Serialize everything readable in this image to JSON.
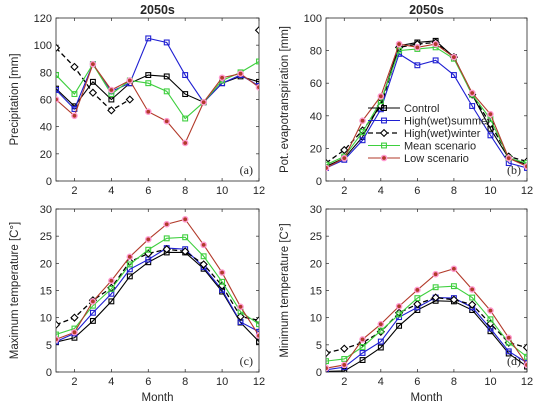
{
  "chart_data": [
    {
      "type": "line",
      "title": "2050s",
      "panel_label": "(a)",
      "xlabel": "",
      "ylabel": "Precipitation [mm]",
      "xlim": [
        1,
        12
      ],
      "ylim": [
        0,
        120
      ],
      "xticks": [
        2,
        4,
        6,
        8,
        10,
        12
      ],
      "yticks": [
        0,
        20,
        40,
        60,
        80,
        100,
        120
      ],
      "x": [
        1,
        2,
        3,
        4,
        5,
        6,
        7,
        8,
        9,
        10,
        11,
        12
      ],
      "series": [
        {
          "name": "Control",
          "color": "#000000",
          "dashed": false,
          "marker": "square",
          "values": [
            68,
            55,
            73,
            60,
            72,
            78,
            77,
            64,
            58,
            72,
            77,
            73
          ]
        },
        {
          "name": "High(wet)summer",
          "color": "#1f1fd2",
          "dashed": false,
          "marker": "square",
          "values": [
            67,
            53,
            86,
            66,
            72,
            105,
            102,
            78,
            58,
            72,
            78,
            70
          ]
        },
        {
          "name": "High(wet)winter",
          "color": "#000000",
          "dashed": true,
          "marker": "diamond",
          "values": [
            98,
            84,
            65,
            52,
            60,
            null,
            null,
            null,
            null,
            null,
            null,
            111
          ]
        },
        {
          "name": "Mean scenario",
          "color": "#3ecf3e",
          "dashed": false,
          "marker": "square",
          "values": [
            78,
            64,
            86,
            64,
            74,
            72,
            66,
            46,
            58,
            74,
            80,
            88
          ]
        },
        {
          "name": "Low scenario",
          "color": "#b23a2a",
          "dashed": false,
          "marker": "circle",
          "values": [
            60,
            48,
            86,
            67,
            74,
            51,
            44,
            28,
            58,
            76,
            79,
            69
          ]
        }
      ]
    },
    {
      "type": "line",
      "title": "2050s",
      "panel_label": "(b)",
      "xlabel": "",
      "ylabel": "Pot. evapotranspiration [mm]",
      "xlim": [
        1,
        12
      ],
      "ylim": [
        0,
        100
      ],
      "xticks": [
        2,
        4,
        6,
        8,
        10,
        12
      ],
      "yticks": [
        0,
        20,
        40,
        60,
        80,
        100
      ],
      "x": [
        1,
        2,
        3,
        4,
        5,
        6,
        7,
        8,
        9,
        10,
        11,
        12
      ],
      "legend": {
        "position": "center-right"
      },
      "series": [
        {
          "name": "Control",
          "color": "#000000",
          "dashed": false,
          "marker": "square",
          "values": [
            9,
            14,
            27,
            48,
            83,
            85,
            86,
            76,
            53,
            32,
            14,
            10
          ]
        },
        {
          "name": "High(wet)summer",
          "color": "#1f1fd2",
          "dashed": false,
          "marker": "square",
          "values": [
            8,
            13,
            25,
            44,
            78,
            71,
            74,
            65,
            46,
            28,
            11,
            8
          ]
        },
        {
          "name": "High(wet)winter",
          "color": "#000000",
          "dashed": true,
          "marker": "diamond",
          "values": [
            11,
            19,
            31,
            46,
            82,
            84,
            85,
            76,
            53,
            35,
            15,
            12
          ]
        },
        {
          "name": "Mean scenario",
          "color": "#3ecf3e",
          "dashed": false,
          "marker": "square",
          "values": [
            10,
            15,
            30,
            49,
            80,
            81,
            82,
            75,
            53,
            38,
            14,
            11
          ]
        },
        {
          "name": "Low scenario",
          "color": "#b23a2a",
          "dashed": false,
          "marker": "circle",
          "values": [
            8,
            14,
            37,
            52,
            84,
            82,
            84,
            76,
            54,
            41,
            14,
            9
          ]
        }
      ]
    },
    {
      "type": "line",
      "title": "",
      "panel_label": "(c)",
      "xlabel": "Month",
      "ylabel": "Maximum temperature [C°]",
      "xlim": [
        1,
        12
      ],
      "ylim": [
        0,
        30
      ],
      "xticks": [
        2,
        4,
        6,
        8,
        10,
        12
      ],
      "yticks": [
        0,
        5,
        10,
        15,
        20,
        25,
        30
      ],
      "x": [
        1,
        2,
        3,
        4,
        5,
        6,
        7,
        8,
        9,
        10,
        11,
        12
      ],
      "series": [
        {
          "name": "Control",
          "color": "#000000",
          "dashed": false,
          "marker": "square",
          "values": [
            5.5,
            6.3,
            9.4,
            13.0,
            17.6,
            20.2,
            22.0,
            22.0,
            19.0,
            14.8,
            9.1,
            5.6
          ]
        },
        {
          "name": "High(wet)summer",
          "color": "#1f1fd2",
          "dashed": false,
          "marker": "square",
          "values": [
            5.6,
            7.1,
            10.9,
            14.4,
            18.9,
            20.7,
            22.8,
            22.6,
            19.3,
            15.1,
            9.2,
            7.4
          ]
        },
        {
          "name": "High(wet)winter",
          "color": "#000000",
          "dashed": true,
          "marker": "diamond",
          "values": [
            8.7,
            10.0,
            13.2,
            15.5,
            20.3,
            21.8,
            22.6,
            22.2,
            19.8,
            15.9,
            10.2,
            9.5
          ]
        },
        {
          "name": "Mean scenario",
          "color": "#3ecf3e",
          "dashed": false,
          "marker": "square",
          "values": [
            6.9,
            8.0,
            12.2,
            15.3,
            19.8,
            22.5,
            24.6,
            24.8,
            21.3,
            16.6,
            11.1,
            8.8
          ]
        },
        {
          "name": "Low scenario",
          "color": "#b23a2a",
          "dashed": false,
          "marker": "circle",
          "values": [
            6.0,
            7.3,
            13.0,
            16.8,
            21.2,
            24.4,
            27.2,
            28.1,
            23.4,
            18.3,
            12.0,
            6.7
          ]
        }
      ]
    },
    {
      "type": "line",
      "title": "",
      "panel_label": "(d)",
      "xlabel": "Month",
      "ylabel": "Minimum temperature [C°]",
      "xlim": [
        1,
        12
      ],
      "ylim": [
        0,
        30
      ],
      "xticks": [
        2,
        4,
        6,
        8,
        10,
        12
      ],
      "yticks": [
        0,
        5,
        10,
        15,
        20,
        25,
        30
      ],
      "x": [
        1,
        2,
        3,
        4,
        5,
        6,
        7,
        8,
        9,
        10,
        11,
        12
      ],
      "series": [
        {
          "name": "Control",
          "color": "#000000",
          "dashed": false,
          "marker": "square",
          "values": [
            0.1,
            0.2,
            2.2,
            4.5,
            8.5,
            11.4,
            13.1,
            13.0,
            11.4,
            7.5,
            3.4,
            1.0
          ]
        },
        {
          "name": "High(wet)summer",
          "color": "#1f1fd2",
          "dashed": false,
          "marker": "square",
          "values": [
            0.4,
            0.9,
            3.5,
            5.6,
            10.1,
            11.9,
            13.7,
            13.6,
            11.9,
            8.0,
            3.8,
            1.7
          ]
        },
        {
          "name": "High(wet)winter",
          "color": "#000000",
          "dashed": true,
          "marker": "diamond",
          "values": [
            3.5,
            4.3,
            5.4,
            7.4,
            10.9,
            12.5,
            13.7,
            13.3,
            12.4,
            8.9,
            5.4,
            4.5
          ]
        },
        {
          "name": "Mean scenario",
          "color": "#3ecf3e",
          "dashed": false,
          "marker": "square",
          "values": [
            2.0,
            2.4,
            4.6,
            7.6,
            10.6,
            13.6,
            15.6,
            15.8,
            13.7,
            9.7,
            5.4,
            2.8
          ]
        },
        {
          "name": "Low scenario",
          "color": "#b23a2a",
          "dashed": false,
          "marker": "circle",
          "values": [
            0.7,
            1.3,
            6.0,
            8.8,
            12.1,
            15.1,
            18.0,
            19.0,
            15.2,
            11.3,
            6.3,
            1.3
          ]
        }
      ]
    }
  ]
}
